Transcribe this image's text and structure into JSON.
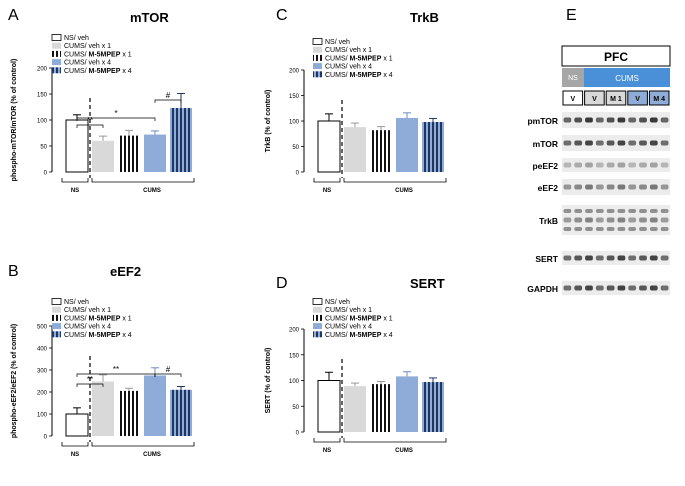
{
  "palette": {
    "white": "#ffffff",
    "grey": "#d9d9d9",
    "blue": "#8fabd8",
    "dark": "#1f3660",
    "ink": "#000000",
    "header_blue": "#4a90d9",
    "header_grey": "#a6a6a6"
  },
  "legend_items": [
    {
      "pre": "NS/ veh",
      "bold": ""
    },
    {
      "pre": "CUMS/ veh x 1",
      "bold": ""
    },
    {
      "pre": "CUMS/ ",
      "bold": "M-5MPEP",
      "post": " x 1"
    },
    {
      "pre": "CUMS/ veh x 4",
      "bold": ""
    },
    {
      "pre": "CUMS/ ",
      "bold": "M-5MPEP",
      "post": " x 4"
    }
  ],
  "group_labels": {
    "ns": "NS",
    "cums": "CUMS"
  },
  "chart_data": [
    {
      "type": "bar",
      "panel": "A",
      "title": "mTOR",
      "ylabel": "phospho-mTOR/mTOR (% of control)",
      "ylim": [
        0,
        200
      ],
      "yticks": [
        "0",
        "50",
        "100",
        "150",
        "200"
      ],
      "categories": [
        "NS/ veh",
        "CUMS/ veh x 1",
        "CUMS/ M-5MPEP x 1",
        "CUMS/ veh x 4",
        "CUMS/ M-5MPEP x 4"
      ],
      "values": [
        100,
        60,
        70,
        72,
        123
      ],
      "errors": [
        10,
        9,
        10,
        7,
        28
      ],
      "annotations": [
        {
          "from": 0,
          "to": 1,
          "label": "**"
        },
        {
          "from": 0,
          "to": 3,
          "label": "*"
        },
        {
          "from": 3,
          "to": 4,
          "label": "#"
        }
      ]
    },
    {
      "type": "bar",
      "panel": "B",
      "title": "eEF2",
      "ylabel": "phospho-eEF2/eEF2 (% of control)",
      "ylim": [
        0,
        500
      ],
      "yticks": [
        "0",
        "100",
        "200",
        "300",
        "400",
        "500"
      ],
      "categories": [
        "NS/ veh",
        "CUMS/ veh x 1",
        "CUMS/ M-5MPEP x 1",
        "CUMS/ veh x 4",
        "CUMS/ M-5MPEP x 4"
      ],
      "values": [
        100,
        248,
        205,
        275,
        210
      ],
      "errors": [
        28,
        30,
        12,
        35,
        15
      ],
      "annotations": [
        {
          "from": 0,
          "to": 1,
          "label": "**"
        },
        {
          "from": 0,
          "to": 3,
          "label": "**"
        },
        {
          "from": 3,
          "to": 4,
          "label": "#"
        }
      ]
    },
    {
      "type": "bar",
      "panel": "C",
      "title": "TrkB",
      "ylabel": "TrkB (% of control)",
      "ylim": [
        0,
        200
      ],
      "yticks": [
        "0",
        "50",
        "100",
        "150",
        "200"
      ],
      "categories": [
        "NS/ veh",
        "CUMS/ veh x 1",
        "CUMS/ M-5MPEP x 1",
        "CUMS/ veh x 4",
        "CUMS/ M-5MPEP x 4"
      ],
      "values": [
        100,
        88,
        82,
        106,
        98
      ],
      "errors": [
        14,
        8,
        7,
        10,
        7
      ],
      "annotations": []
    },
    {
      "type": "bar",
      "panel": "D",
      "title": "SERT",
      "ylabel": "SERT (% of control)",
      "ylim": [
        0,
        200
      ],
      "yticks": [
        "0",
        "50",
        "100",
        "150",
        "200"
      ],
      "categories": [
        "NS/ veh",
        "CUMS/ veh x 1",
        "CUMS/ M-5MPEP x 1",
        "CUMS/ veh x 4",
        "CUMS/ M-5MPEP x 4"
      ],
      "values": [
        100,
        89,
        93,
        108,
        97
      ],
      "errors": [
        16,
        6,
        5,
        9,
        8
      ],
      "annotations": []
    }
  ],
  "blot": {
    "panel": "E",
    "region": "PFC",
    "group_ns": "NS",
    "group_cums": "CUMS",
    "lanes": [
      "V",
      "V",
      "M 1",
      "V",
      "M 4"
    ],
    "rows": [
      "pmTOR",
      "mTOR",
      "peEF2",
      "eEF2",
      "TrkB",
      "SERT",
      "GAPDH"
    ]
  }
}
